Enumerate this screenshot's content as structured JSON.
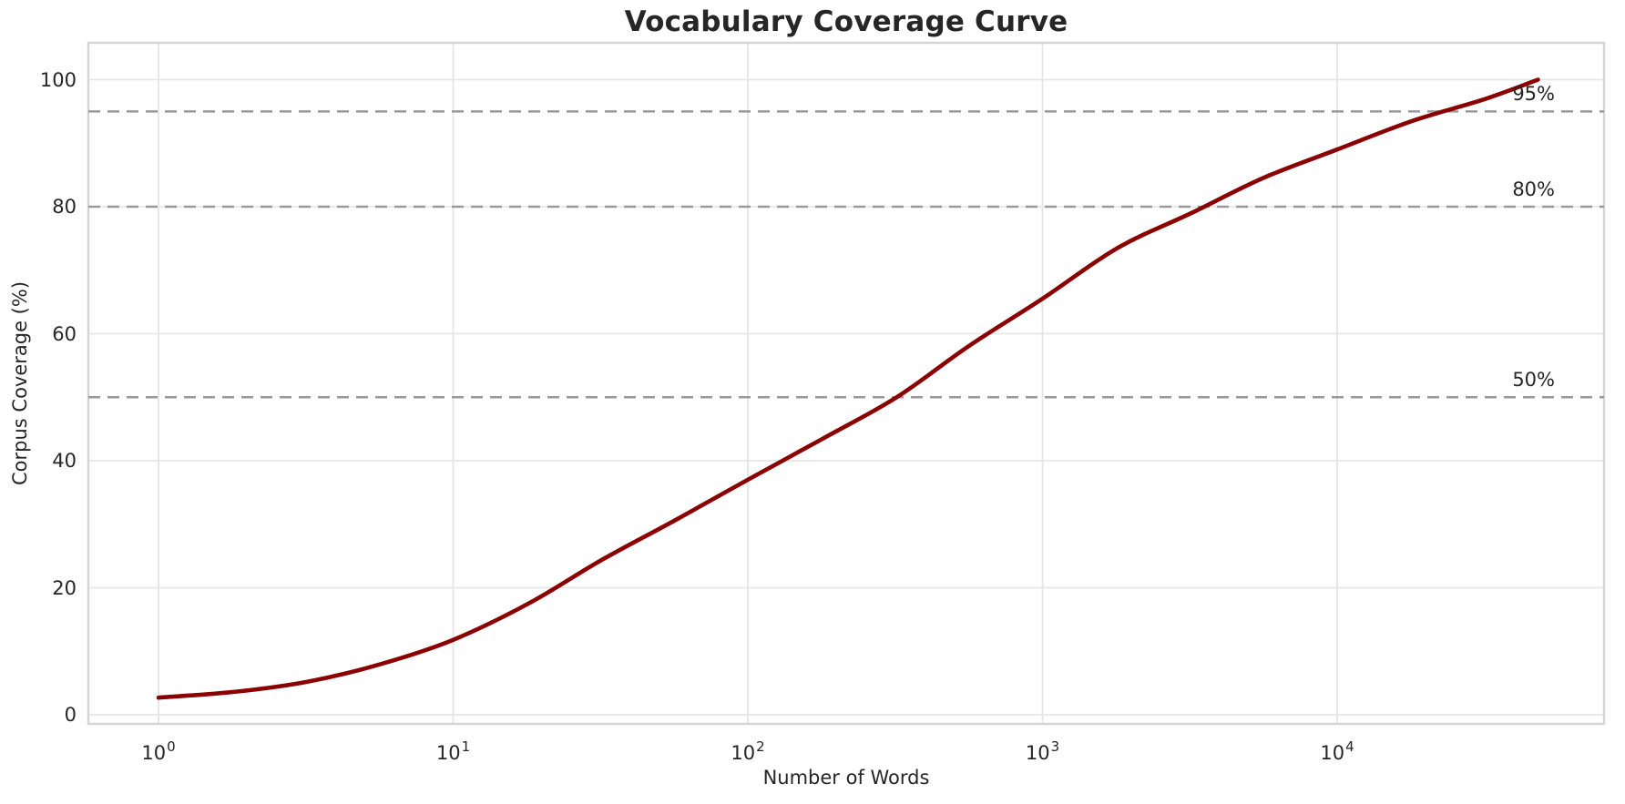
{
  "figure": {
    "title": "Vocabulary Coverage Curve"
  },
  "chart_data": {
    "type": "line",
    "title": "Vocabulary Coverage Curve",
    "xlabel": "Number of Words",
    "ylabel": "Corpus Coverage (%)",
    "x_scale": "log",
    "grid": true,
    "legend": "none",
    "xlim": [
      0.58,
      80000
    ],
    "ylim": [
      -1.4,
      105.8
    ],
    "series": [
      {
        "name": "vocabulary-coverage",
        "color": "#8B0000",
        "x": [
          1,
          1.8,
          3.2,
          5.6,
          10,
          18,
          32,
          56,
          100,
          180,
          320,
          560,
          1000,
          1800,
          3200,
          5600,
          10000,
          18000,
          32000,
          48000
        ],
        "y": [
          2.7,
          3.6,
          5.2,
          7.9,
          11.8,
          17.5,
          24.4,
          30.5,
          37.0,
          43.5,
          50.0,
          58.0,
          65.5,
          73.5,
          79.0,
          84.5,
          89.0,
          93.5,
          97.0,
          100.0
        ]
      }
    ],
    "x_ticks": [
      {
        "base": "10",
        "exp": "0",
        "value": 1
      },
      {
        "base": "10",
        "exp": "1",
        "value": 10
      },
      {
        "base": "10",
        "exp": "2",
        "value": 100
      },
      {
        "base": "10",
        "exp": "3",
        "value": 1000
      },
      {
        "base": "10",
        "exp": "4",
        "value": 10000
      }
    ],
    "y_ticks": [
      0,
      20,
      40,
      60,
      80,
      100
    ],
    "reference_lines": [
      {
        "value": 50,
        "label": "50%"
      },
      {
        "value": 80,
        "label": "80%"
      },
      {
        "value": 95,
        "label": "95%"
      }
    ],
    "colors": {
      "line": "#8B0000",
      "reference_line": "#999999",
      "grid": "#e6e6e6",
      "spine": "#d4d4d4",
      "text": "#262626",
      "background": "#ffffff"
    }
  }
}
